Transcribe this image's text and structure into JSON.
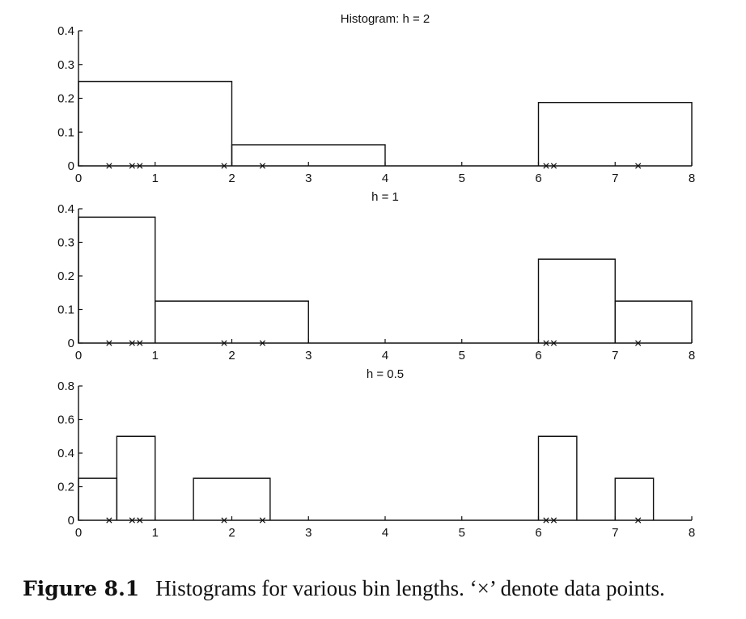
{
  "chart_data": [
    {
      "type": "bar",
      "title": "Histogram: h = 2",
      "bin_width": 2,
      "bins": [
        {
          "x0": 0,
          "x1": 2,
          "value": 0.25
        },
        {
          "x0": 2,
          "x1": 4,
          "value": 0.0625
        },
        {
          "x0": 6,
          "x1": 8,
          "value": 0.1875
        }
      ],
      "data_points": [
        0.4,
        0.7,
        0.8,
        1.9,
        2.4,
        6.1,
        6.2,
        7.3
      ],
      "xlim": [
        0,
        8
      ],
      "ylim": [
        0,
        0.4
      ],
      "xticks": [
        "0",
        "1",
        "2",
        "3",
        "4",
        "5",
        "6",
        "7",
        "8"
      ],
      "yticks": [
        "0",
        "0.1",
        "0.2",
        "0.3",
        "0.4"
      ]
    },
    {
      "type": "bar",
      "title": "h = 1",
      "bin_width": 1,
      "bins": [
        {
          "x0": 0,
          "x1": 1,
          "value": 0.375
        },
        {
          "x0": 1,
          "x1": 3,
          "value": 0.125
        },
        {
          "x0": 6,
          "x1": 7,
          "value": 0.25
        },
        {
          "x0": 7,
          "x1": 8,
          "value": 0.125
        }
      ],
      "data_points": [
        0.4,
        0.7,
        0.8,
        1.9,
        2.4,
        6.1,
        6.2,
        7.3
      ],
      "xlim": [
        0,
        8
      ],
      "ylim": [
        0,
        0.4
      ],
      "xticks": [
        "0",
        "1",
        "2",
        "3",
        "4",
        "5",
        "6",
        "7",
        "8"
      ],
      "yticks": [
        "0",
        "0.1",
        "0.2",
        "0.3",
        "0.4"
      ]
    },
    {
      "type": "bar",
      "title": "h = 0.5",
      "bin_width": 0.5,
      "bins": [
        {
          "x0": 0,
          "x1": 0.5,
          "value": 0.25
        },
        {
          "x0": 0.5,
          "x1": 1,
          "value": 0.5
        },
        {
          "x0": 1.5,
          "x1": 2.5,
          "value": 0.25
        },
        {
          "x0": 6,
          "x1": 6.5,
          "value": 0.5
        },
        {
          "x0": 7,
          "x1": 7.5,
          "value": 0.25
        }
      ],
      "data_points": [
        0.4,
        0.7,
        0.8,
        1.9,
        2.4,
        6.1,
        6.2,
        7.3
      ],
      "xlim": [
        0,
        8
      ],
      "ylim": [
        0,
        0.8
      ],
      "xticks": [
        "0",
        "1",
        "2",
        "3",
        "4",
        "5",
        "6",
        "7",
        "8"
      ],
      "yticks": [
        "0",
        "0.2",
        "0.4",
        "0.6",
        "0.8"
      ]
    }
  ],
  "caption": {
    "label": "Figure 8.1",
    "text": "Histograms for various bin lengths. ‘×’ denote data points."
  }
}
